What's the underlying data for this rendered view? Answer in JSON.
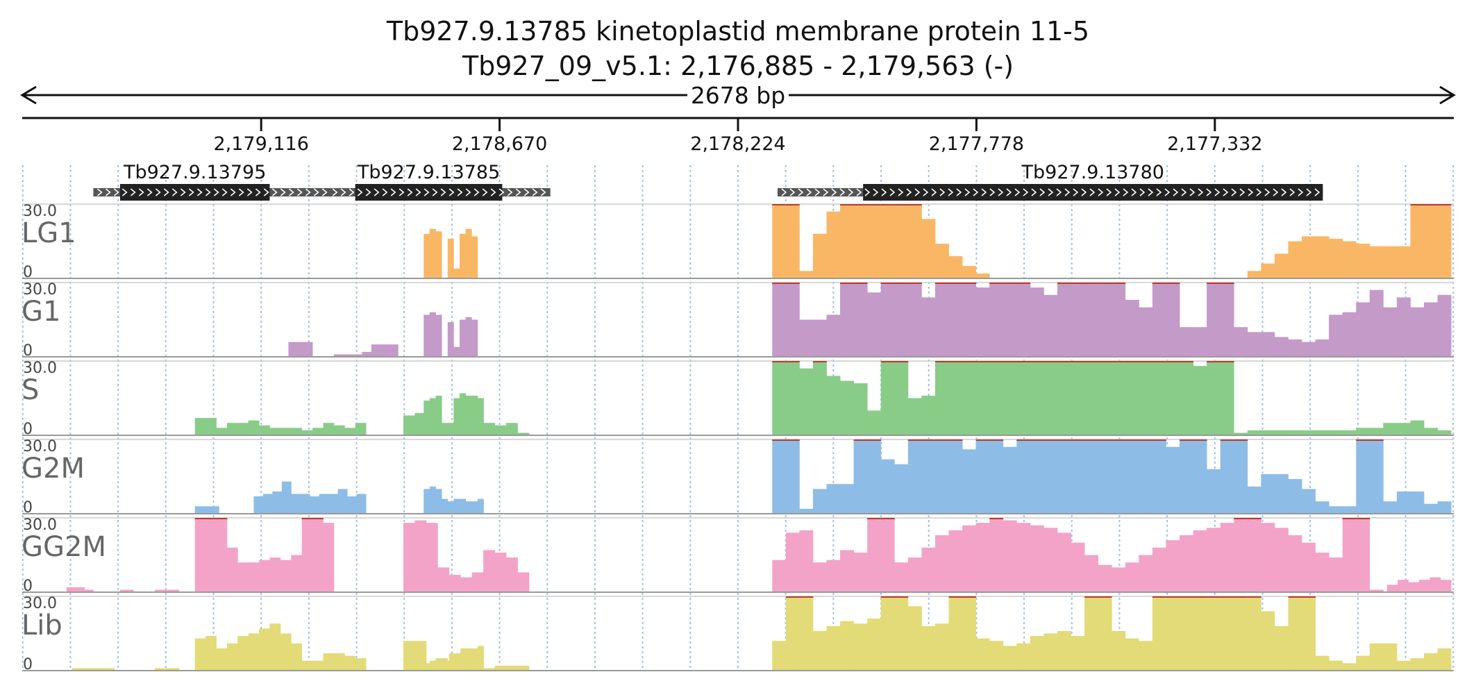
{
  "header": {
    "title": "Tb927.9.13785  kinetoplastid membrane protein 11-5",
    "subtitle": "Tb927_09_v5.1: 2,176,885 - 2,179,563 (-)",
    "span_label": "2678 bp"
  },
  "colors": {
    "LG1": "#f9b766",
    "G1": "#c49ac9",
    "S": "#88cc88",
    "G2M": "#8dbde6",
    "GG2M": "#f4a3c8",
    "Lib": "#e2db77",
    "clip": "#c0392b",
    "grid": "#9ec0e6",
    "gene_cds": "#222222",
    "gene_utr": "#555555"
  },
  "chart_data": {
    "type": "area",
    "x_axis": {
      "start": 2179563,
      "end": 2176885,
      "direction": "reverse",
      "ticks": [
        {
          "value": 2179116,
          "label": "2,179,116"
        },
        {
          "value": 2178670,
          "label": "2,178,670"
        },
        {
          "value": 2178224,
          "label": "2,178,224"
        },
        {
          "value": 2177778,
          "label": "2,177,778"
        },
        {
          "value": 2177332,
          "label": "2,177,332"
        }
      ]
    },
    "genes": [
      {
        "name": "Tb927.9.13795",
        "utr_start": 2179430,
        "utr_end": 2178970,
        "cds_start": 2179380,
        "cds_end": 2179100
      },
      {
        "name": "Tb927.9.13785",
        "utr_start": 2178990,
        "utr_end": 2178575,
        "cds_start": 2178940,
        "cds_end": 2178665
      },
      {
        "name": "Tb927.9.13780",
        "utr_start": 2178150,
        "utr_end": 2177130,
        "cds_start": 2177990,
        "cds_end": 2177130
      }
    ],
    "ymax": 30,
    "y_top_label": "30.0",
    "y_bottom_label": "0",
    "tracks": [
      {
        "name": "LG1",
        "segments": [
          {
            "start": 2178812,
            "end": 2178700,
            "values": [
              18,
              20,
              19,
              0,
              16,
              4,
              18,
              20,
              17,
              0
            ]
          },
          {
            "start": 2178160,
            "end": 2176890,
            "values": [
              30,
              30,
              3,
              18,
              27,
              30,
              30,
              30,
              30,
              30,
              30,
              24,
              14,
              9,
              5,
              2,
              0,
              0,
              0,
              0,
              0,
              0,
              0,
              0,
              0,
              0,
              0,
              0,
              0,
              0,
              0,
              0,
              0,
              0,
              0,
              3,
              6,
              10,
              15,
              17,
              17,
              16,
              15,
              14,
              13,
              13,
              13,
              30,
              30,
              30
            ]
          }
        ]
      },
      {
        "name": "G1",
        "segments": [
          {
            "start": 2179065,
            "end": 2179020,
            "values": [
              6,
              6,
              6
            ]
          },
          {
            "start": 2178980,
            "end": 2178910,
            "values": [
              1,
              1,
              1,
              2
            ]
          },
          {
            "start": 2178910,
            "end": 2178860,
            "values": [
              5,
              5,
              5
            ]
          },
          {
            "start": 2178812,
            "end": 2178700,
            "values": [
              17,
              18,
              17,
              0,
              14,
              4,
              15,
              16,
              15,
              0
            ]
          },
          {
            "start": 2178160,
            "end": 2176890,
            "values": [
              30,
              30,
              15,
              15,
              17,
              30,
              30,
              26,
              30,
              30,
              30,
              24,
              30,
              30,
              30,
              28,
              30,
              30,
              30,
              28,
              25,
              30,
              30,
              30,
              30,
              30,
              23,
              20,
              30,
              30,
              12,
              12,
              30,
              30,
              12,
              10,
              10,
              8,
              7,
              6,
              7,
              17,
              18,
              22,
              27,
              20,
              24,
              20,
              22,
              25
            ]
          }
        ]
      },
      {
        "name": "S",
        "segments": [
          {
            "start": 2179240,
            "end": 2178920,
            "values": [
              7,
              7,
              3,
              5,
              5,
              6,
              4,
              3,
              3,
              3,
              2,
              3,
              5,
              4,
              3,
              5
            ]
          },
          {
            "start": 2178850,
            "end": 2178615,
            "values": [
              8,
              9,
              1,
              4,
              4,
              4,
              5,
              5,
              4,
              5,
              1
            ]
          },
          {
            "start": 2178812,
            "end": 2178700,
            "values": [
              14,
              15,
              16,
              5,
              5,
              15,
              17,
              16,
              16,
              15
            ]
          },
          {
            "start": 2178160,
            "end": 2176890,
            "values": [
              30,
              30,
              27,
              30,
              24,
              22,
              21,
              10,
              30,
              30,
              15,
              16,
              30,
              30,
              30,
              30,
              30,
              30,
              30,
              30,
              30,
              30,
              30,
              30,
              30,
              30,
              30,
              30,
              30,
              30,
              30,
              28,
              30,
              30,
              1,
              2,
              2,
              2,
              2,
              2,
              2,
              2,
              2,
              3,
              3,
              5,
              5,
              6,
              3,
              2
            ]
          }
        ]
      },
      {
        "name": "G2M",
        "segments": [
          {
            "start": 2179240,
            "end": 2179195,
            "values": [
              3,
              3,
              3
            ]
          },
          {
            "start": 2179130,
            "end": 2178920,
            "values": [
              7,
              8,
              9,
              13,
              8,
              8,
              7,
              8,
              8,
              10,
              7,
              8
            ]
          },
          {
            "start": 2178812,
            "end": 2178700,
            "values": [
              10,
              11,
              10,
              6,
              5,
              6,
              6,
              5,
              5,
              6
            ]
          },
          {
            "start": 2178160,
            "end": 2176890,
            "values": [
              30,
              30,
              2,
              10,
              12,
              12,
              30,
              30,
              22,
              20,
              30,
              30,
              30,
              30,
              26,
              30,
              30,
              27,
              30,
              30,
              30,
              30,
              30,
              30,
              30,
              30,
              30,
              30,
              30,
              27,
              30,
              30,
              18,
              30,
              30,
              11,
              16,
              16,
              14,
              10,
              5,
              3,
              3,
              30,
              30,
              5,
              9,
              9,
              4,
              5
            ]
          }
        ]
      },
      {
        "name": "GG2M",
        "segments": [
          {
            "start": 2179480,
            "end": 2179430,
            "values": [
              2,
              2,
              1
            ]
          },
          {
            "start": 2179380,
            "end": 2179355,
            "values": [
              1,
              1
            ]
          },
          {
            "start": 2179315,
            "end": 2179270,
            "values": [
              1,
              1,
              1
            ]
          },
          {
            "start": 2179240,
            "end": 2178980,
            "values": [
              30,
              30,
              30,
              18,
              12,
              12,
              13,
              14,
              13,
              15,
              30,
              30,
              28
            ]
          },
          {
            "start": 2178850,
            "end": 2178615,
            "values": [
              28,
              29,
              28,
              10,
              7,
              6,
              8,
              17,
              16,
              14,
              8
            ]
          },
          {
            "start": 2178160,
            "end": 2176890,
            "values": [
              13,
              24,
              25,
              12,
              13,
              17,
              16,
              30,
              30,
              12,
              14,
              18,
              23,
              25,
              27,
              28,
              30,
              29,
              28,
              27,
              26,
              24,
              20,
              15,
              11,
              10,
              12,
              15,
              18,
              21,
              23,
              25,
              26,
              28,
              30,
              30,
              28,
              26,
              23,
              20,
              16,
              14,
              30,
              30,
              1,
              0,
              0,
              0,
              0,
              0
            ]
          },
          {
            "start": 2177010,
            "end": 2176890,
            "values": [
              3,
              5,
              4,
              5,
              6,
              5
            ]
          }
        ]
      },
      {
        "name": "Lib",
        "segments": [
          {
            "start": 2179470,
            "end": 2179390,
            "values": [
              1,
              1,
              1,
              1
            ]
          },
          {
            "start": 2179315,
            "end": 2179270,
            "values": [
              1,
              1,
              1
            ]
          },
          {
            "start": 2179240,
            "end": 2178920,
            "values": [
              13,
              14,
              9,
              11,
              14,
              15,
              17,
              19,
              15,
              11,
              4,
              4,
              7,
              7,
              6,
              5
            ]
          },
          {
            "start": 2178850,
            "end": 2178615,
            "values": [
              12,
              12,
              1,
              4,
              7,
              9,
              8,
              1,
              2,
              2,
              2
            ]
          },
          {
            "start": 2178812,
            "end": 2178700,
            "values": [
              3,
              4,
              5,
              5,
              4,
              6,
              7,
              8,
              9,
              10
            ]
          },
          {
            "start": 2178690,
            "end": 2178615,
            "values": [
              1,
              1,
              1,
              1
            ]
          },
          {
            "start": 2178160,
            "end": 2176890,
            "values": [
              12,
              30,
              30,
              16,
              18,
              20,
              19,
              21,
              30,
              30,
              26,
              18,
              19,
              30,
              30,
              13,
              12,
              10,
              11,
              14,
              15,
              16,
              14,
              30,
              30,
              16,
              13,
              12,
              30,
              30,
              30,
              30,
              30,
              30,
              30,
              30,
              24,
              18,
              30,
              30,
              6,
              4,
              3,
              6,
              11,
              11,
              4,
              5,
              7,
              9
            ]
          }
        ]
      }
    ]
  }
}
